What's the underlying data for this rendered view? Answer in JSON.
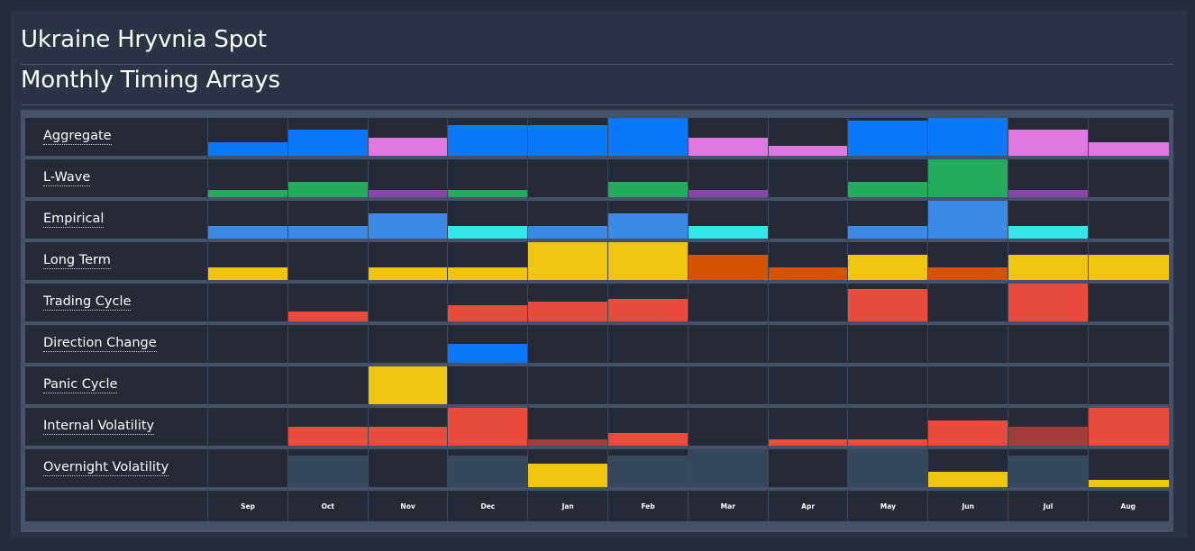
{
  "title": "Ukraine Hryvnia Spot",
  "subtitle": "Monthly Timing Arrays",
  "chart_data": {
    "type": "heatmap",
    "categories": [
      "Sep",
      "Oct",
      "Nov",
      "Dec",
      "Jan",
      "Feb",
      "Mar",
      "Apr",
      "May",
      "Jun",
      "Jul",
      "Aug"
    ],
    "rows": [
      {
        "label": "Aggregate",
        "values": [
          0.35,
          0.7,
          0.48,
          0.8,
          0.8,
          1.0,
          0.48,
          0.25,
          0.92,
          1.0,
          0.7,
          0.35
        ],
        "colors": [
          "#0a78f8",
          "#0a78f8",
          "#e078e2",
          "#0a78f8",
          "#0a78f8",
          "#0a78f8",
          "#e078e2",
          "#e078e2",
          "#0a78f8",
          "#0a78f8",
          "#e078e2",
          "#e078e2"
        ]
      },
      {
        "label": "L-Wave",
        "values": [
          0.2,
          0.4,
          0.2,
          0.2,
          0,
          0.4,
          0.2,
          0,
          0.4,
          1.0,
          0.2,
          0
        ],
        "colors": [
          "#24ab5e",
          "#24ab5e",
          "#8b44ac",
          "#24ab5e",
          "#24ab5e",
          "#24ab5e",
          "#8b44ac",
          "#24ab5e",
          "#24ab5e",
          "#24ab5e",
          "#8b44ac",
          "#24ab5e"
        ]
      },
      {
        "label": "Empirical",
        "values": [
          0.33,
          0.33,
          0.67,
          0.33,
          0.33,
          0.67,
          0.33,
          0,
          0.33,
          1.0,
          0.33,
          0
        ],
        "colors": [
          "#3a8ae6",
          "#3a8ae6",
          "#3a8ae6",
          "#36e6e6",
          "#3a8ae6",
          "#3a8ae6",
          "#36e6e6",
          "#3a8ae6",
          "#3a8ae6",
          "#3a8ae6",
          "#36e6e6",
          "#3a8ae6"
        ]
      },
      {
        "label": "Long Term",
        "values": [
          0.33,
          0,
          0.33,
          0.33,
          1.0,
          1.0,
          0.67,
          0.33,
          0.67,
          0.33,
          0.67,
          0.67
        ],
        "colors": [
          "#f1c40f",
          "#f1c40f",
          "#f1c40f",
          "#f1c40f",
          "#f1c40f",
          "#f1c40f",
          "#d35400",
          "#d35400",
          "#f1c40f",
          "#d35400",
          "#f1c40f",
          "#f1c40f"
        ]
      },
      {
        "label": "Trading Cycle",
        "values": [
          0,
          0.25,
          0,
          0.43,
          0.52,
          0.6,
          0,
          0,
          0.85,
          0,
          1.0,
          0
        ],
        "colors": [
          "#e74c3c",
          "#e74c3c",
          "#e74c3c",
          "#e74c3c",
          "#e74c3c",
          "#e74c3c",
          "#e74c3c",
          "#e74c3c",
          "#e74c3c",
          "#e74c3c",
          "#e74c3c",
          "#e74c3c"
        ]
      },
      {
        "label": "Direction Change",
        "values": [
          0,
          0,
          0,
          0.5,
          0,
          0,
          0,
          0,
          0,
          0,
          0,
          0
        ],
        "colors": [
          "#0a78f8",
          "#0a78f8",
          "#0a78f8",
          "#0a78f8",
          "#0a78f8",
          "#0a78f8",
          "#0a78f8",
          "#0a78f8",
          "#0a78f8",
          "#0a78f8",
          "#0a78f8",
          "#0a78f8"
        ]
      },
      {
        "label": "Panic Cycle",
        "values": [
          0,
          0,
          1.0,
          0,
          0,
          0,
          0,
          0,
          0,
          0,
          0,
          0
        ],
        "colors": [
          "#f1c40f",
          "#f1c40f",
          "#f1c40f",
          "#f1c40f",
          "#f1c40f",
          "#f1c40f",
          "#f1c40f",
          "#f1c40f",
          "#f1c40f",
          "#f1c40f",
          "#f1c40f",
          "#f1c40f"
        ]
      },
      {
        "label": "Internal Volatility",
        "values": [
          0,
          0.5,
          0.5,
          1.0,
          0.17,
          0.33,
          0,
          0.17,
          0.17,
          0.67,
          0.5,
          1.0
        ],
        "colors": [
          "#e74c3c",
          "#e74c3c",
          "#e74c3c",
          "#e74c3c",
          "#a23d3b",
          "#e74c3c",
          "#e74c3c",
          "#e74c3c",
          "#e74c3c",
          "#e74c3c",
          "#a23d3b",
          "#e74c3c"
        ]
      },
      {
        "label": "Overnight Volatility",
        "values": [
          0,
          0.83,
          0,
          0.83,
          0.62,
          0.83,
          1.0,
          0,
          1.0,
          0.4,
          0.83,
          0.2
        ],
        "colors": [
          "#34495e",
          "#34495e",
          "#34495e",
          "#34495e",
          "#f1c40f",
          "#34495e",
          "#34495e",
          "#34495e",
          "#34495e",
          "#f1c40f",
          "#34495e",
          "#f1c40f"
        ]
      }
    ]
  }
}
